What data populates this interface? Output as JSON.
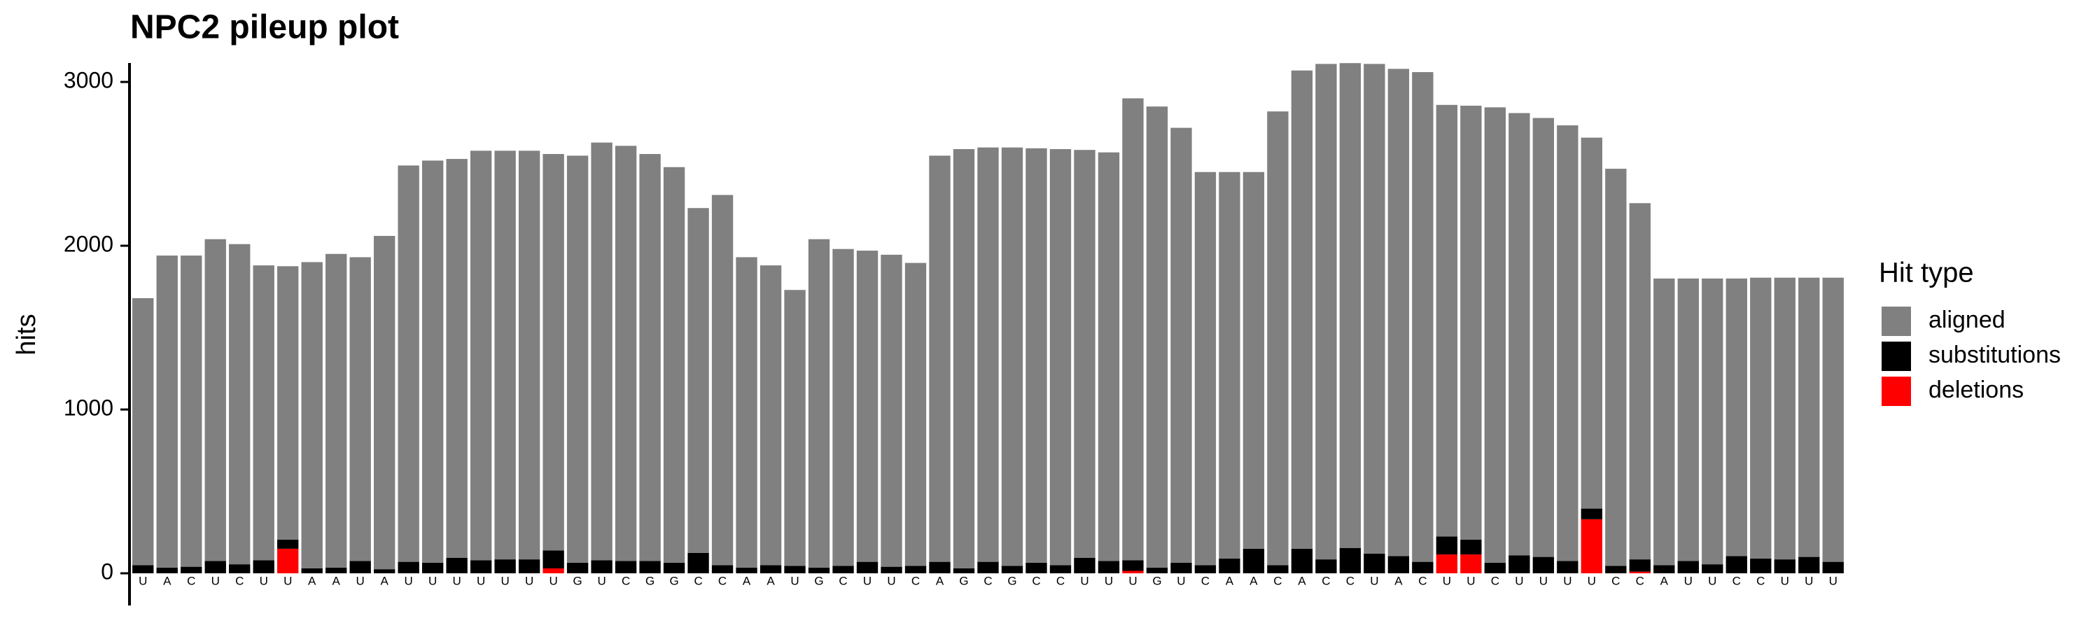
{
  "chart_data": {
    "type": "stacked_bar",
    "title": "NPC2 pileup plot",
    "y_label": "hits",
    "legend_title": "Hit type",
    "legend_position": "right",
    "categories": [
      "U",
      "A",
      "C",
      "U",
      "C",
      "U",
      "U",
      "A",
      "A",
      "U",
      "A",
      "U",
      "U",
      "U",
      "U",
      "U",
      "U",
      "U",
      "G",
      "U",
      "C",
      "G",
      "G",
      "C",
      "C",
      "A",
      "A",
      "U",
      "G",
      "C",
      "U",
      "U",
      "C",
      "A",
      "G",
      "C",
      "G",
      "C",
      "C",
      "U",
      "U",
      "U",
      "G",
      "U",
      "C",
      "A",
      "A",
      "C",
      "A",
      "C",
      "C",
      "U",
      "A",
      "C",
      "U",
      "U",
      "C",
      "U",
      "U",
      "U",
      "U",
      "C",
      "C",
      "A",
      "U",
      "U",
      "C",
      "C",
      "U",
      "U",
      "U"
    ],
    "series": [
      {
        "name": "aligned",
        "color": "#808080",
        "values": [
          1630,
          1905,
          1900,
          1965,
          1955,
          1800,
          1670,
          1870,
          1915,
          1855,
          2035,
          2420,
          2455,
          2435,
          2500,
          2495,
          2495,
          2420,
          2485,
          2550,
          2535,
          2485,
          2415,
          2105,
          2260,
          1895,
          1830,
          1685,
          2005,
          1935,
          1900,
          1905,
          1850,
          2480,
          2560,
          2530,
          2555,
          2530,
          2540,
          2490,
          2495,
          2820,
          2815,
          2655,
          2400,
          2360,
          2300,
          2770,
          2920,
          3025,
          2960,
          2990,
          2975,
          2990,
          2635,
          2650,
          2780,
          2700,
          2680,
          2660,
          2265,
          2425,
          2175,
          1750,
          1725,
          1745,
          1695,
          1715,
          1720,
          1705,
          1735
        ]
      },
      {
        "name": "substitutions",
        "color": "#000000",
        "values": [
          50,
          35,
          40,
          75,
          55,
          80,
          55,
          30,
          35,
          75,
          25,
          70,
          65,
          95,
          80,
          85,
          85,
          110,
          65,
          80,
          75,
          75,
          65,
          125,
          50,
          35,
          50,
          45,
          35,
          45,
          70,
          40,
          45,
          70,
          30,
          70,
          45,
          65,
          50,
          95,
          75,
          65,
          35,
          65,
          50,
          90,
          150,
          50,
          150,
          85,
          155,
          120,
          105,
          70,
          110,
          90,
          65,
          110,
          100,
          75,
          65,
          45,
          75,
          50,
          75,
          55,
          105,
          90,
          85,
          100,
          70
        ]
      },
      {
        "name": "deletions",
        "color": "#ff0000",
        "values": [
          0,
          0,
          0,
          0,
          0,
          0,
          150,
          0,
          0,
          0,
          0,
          0,
          0,
          0,
          0,
          0,
          0,
          30,
          0,
          0,
          0,
          0,
          0,
          0,
          0,
          0,
          0,
          0,
          0,
          0,
          0,
          0,
          0,
          0,
          0,
          0,
          0,
          0,
          0,
          0,
          0,
          15,
          0,
          0,
          0,
          0,
          0,
          0,
          0,
          0,
          0,
          0,
          0,
          0,
          115,
          115,
          0,
          0,
          0,
          0,
          330,
          0,
          10,
          0,
          0,
          0,
          0,
          0,
          0,
          0,
          0
        ]
      }
    ],
    "ylim": [
      0,
      3120
    ],
    "yticks": [
      0,
      1000,
      2000,
      3000
    ],
    "grid": false
  }
}
